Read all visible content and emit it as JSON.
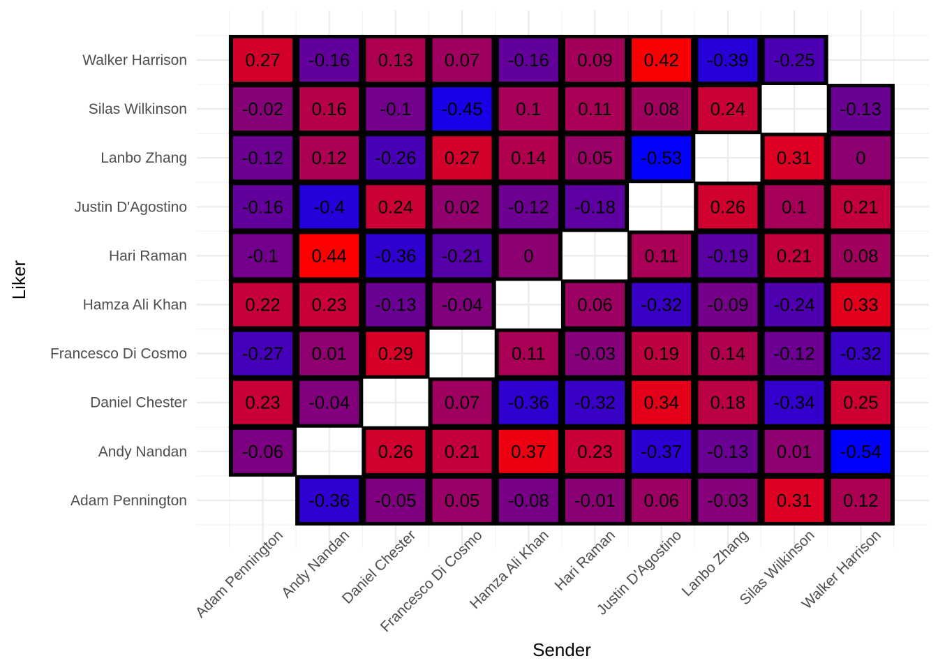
{
  "chart_data": {
    "type": "heatmap",
    "title": "",
    "xlabel": "Sender",
    "ylabel": "Liker",
    "x_categories": [
      "Adam Pennington",
      "Andy Nandan",
      "Daniel Chester",
      "Francesco Di Cosmo",
      "Hamza Ali Khan",
      "Hari Raman",
      "Justin D'Agostino",
      "Lanbo Zhang",
      "Silas Wilkinson",
      "Walker Harrison"
    ],
    "y_categories": [
      "Walker Harrison",
      "Silas Wilkinson",
      "Lanbo Zhang",
      "Justin D'Agostino",
      "Hari Raman",
      "Hamza Ali Khan",
      "Francesco Di Cosmo",
      "Daniel Chester",
      "Andy Nandan",
      "Adam Pennington"
    ],
    "values": [
      [
        0.27,
        -0.16,
        0.13,
        0.07,
        -0.16,
        0.09,
        0.42,
        -0.39,
        -0.25,
        null
      ],
      [
        -0.02,
        0.16,
        -0.1,
        -0.45,
        0.1,
        0.11,
        0.08,
        0.24,
        null,
        -0.13
      ],
      [
        -0.12,
        0.12,
        -0.26,
        0.27,
        0.14,
        0.05,
        -0.53,
        null,
        0.31,
        0
      ],
      [
        -0.16,
        -0.4,
        0.24,
        0.02,
        -0.12,
        -0.18,
        null,
        0.26,
        0.1,
        0.21
      ],
      [
        -0.1,
        0.44,
        -0.36,
        -0.21,
        0,
        null,
        0.11,
        -0.19,
        0.21,
        0.08
      ],
      [
        0.22,
        0.23,
        -0.13,
        -0.04,
        null,
        0.06,
        -0.32,
        -0.09,
        -0.24,
        0.33
      ],
      [
        -0.27,
        0.01,
        0.29,
        null,
        0.11,
        -0.03,
        0.19,
        0.14,
        -0.12,
        -0.32
      ],
      [
        0.23,
        -0.04,
        null,
        0.07,
        -0.36,
        -0.32,
        0.34,
        0.18,
        -0.34,
        0.25
      ],
      [
        -0.06,
        null,
        0.26,
        0.21,
        0.37,
        0.23,
        -0.37,
        -0.13,
        0.01,
        -0.54
      ],
      [
        null,
        -0.36,
        -0.05,
        0.05,
        -0.08,
        -0.01,
        0.06,
        -0.03,
        0.31,
        0.12
      ]
    ],
    "color_scale": {
      "low": "#0000ff",
      "high": "#ff0000",
      "domain": [
        -0.54,
        0.44
      ]
    },
    "missing_color": "#ffffff",
    "border_color": "#000000",
    "grid": true,
    "legend": "none"
  }
}
